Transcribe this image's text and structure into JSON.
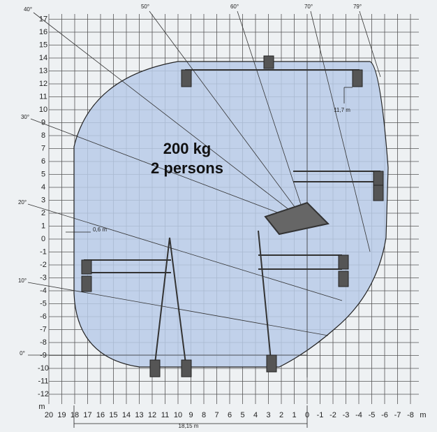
{
  "x_axis": {
    "unit": "m",
    "ticks": [
      20,
      19,
      18,
      17,
      16,
      15,
      14,
      13,
      12,
      11,
      10,
      9,
      8,
      7,
      6,
      5,
      4,
      3,
      2,
      1,
      0,
      -1,
      -2,
      -3,
      -4,
      -5,
      -6,
      -7,
      -8
    ]
  },
  "y_axis": {
    "unit": "m",
    "ticks": [
      17,
      16,
      15,
      14,
      13,
      12,
      11,
      10,
      9,
      8,
      7,
      6,
      5,
      4,
      3,
      2,
      1,
      0,
      -1,
      -2,
      -3,
      -4,
      -5,
      -6,
      -7,
      -8,
      -9,
      -10,
      -11,
      -12
    ]
  },
  "angles": [
    "40°",
    "50°",
    "60°",
    "70°",
    "79°",
    "30°",
    "20°",
    "10°",
    "0°"
  ],
  "load": {
    "weight": "200 kg",
    "persons": "2 persons"
  },
  "dimensions": {
    "height": "11,7 m",
    "offset": "0,6 m",
    "reach": "18,15 m"
  }
}
